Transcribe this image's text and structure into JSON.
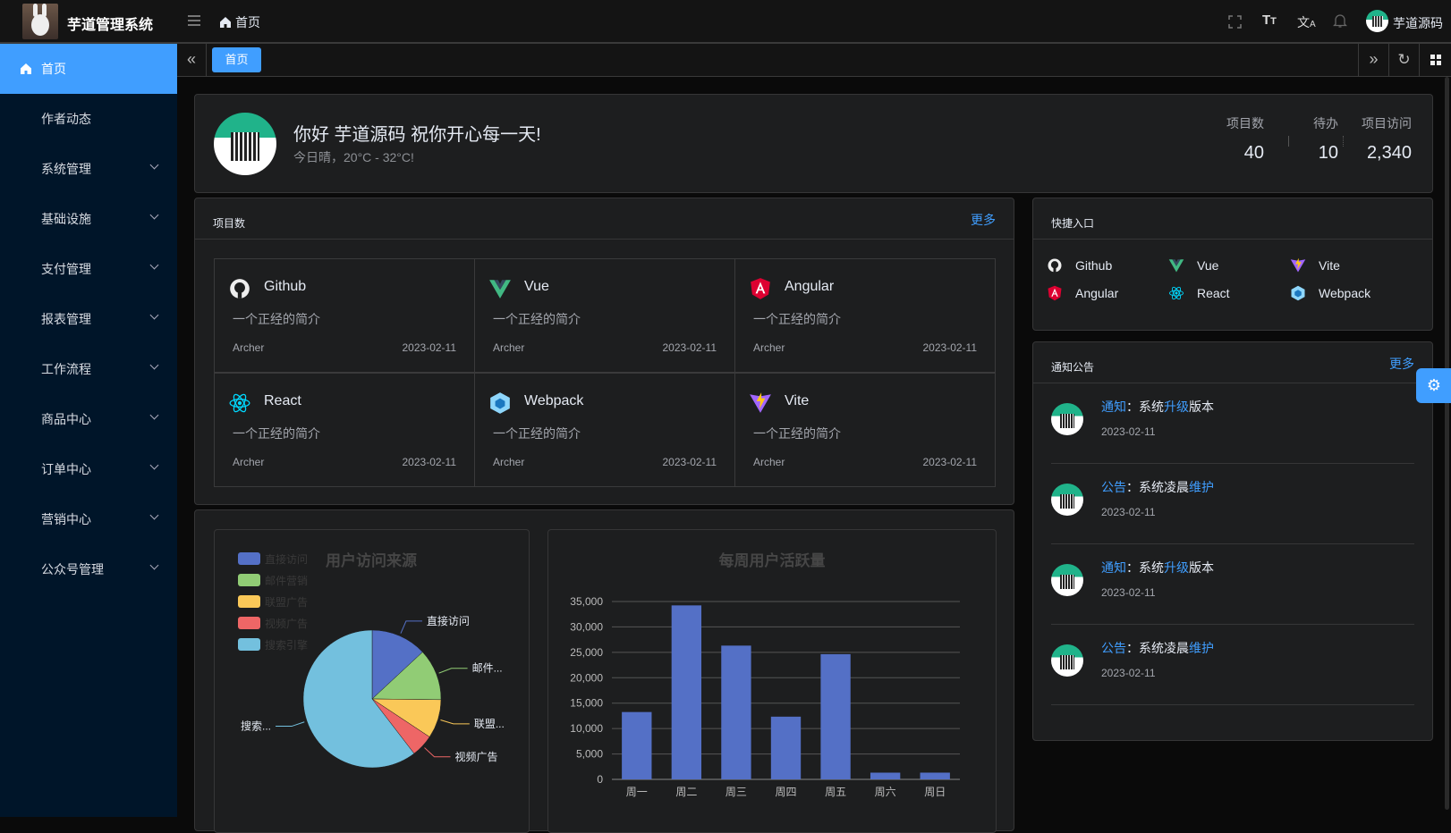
{
  "header": {
    "app_title": "芋道管理系统",
    "breadcrumb": "首页",
    "user_name": "芋道源码"
  },
  "sidebar": {
    "items": [
      {
        "label": "首页",
        "icon": "home-icon",
        "active": true
      },
      {
        "label": "作者动态"
      },
      {
        "label": "系统管理",
        "expandable": true
      },
      {
        "label": "基础设施",
        "expandable": true
      },
      {
        "label": "支付管理",
        "expandable": true
      },
      {
        "label": "报表管理",
        "expandable": true
      },
      {
        "label": "工作流程",
        "expandable": true
      },
      {
        "label": "商品中心",
        "expandable": true
      },
      {
        "label": "订单中心",
        "expandable": true
      },
      {
        "label": "营销中心",
        "expandable": true
      },
      {
        "label": "公众号管理",
        "expandable": true
      }
    ]
  },
  "tabs": [
    {
      "label": "首页",
      "active": true
    }
  ],
  "welcome": {
    "greeting": "你好 芋道源码 祝你开心每一天!",
    "weather": "今日晴，20°C - 32°C!",
    "stats": [
      {
        "label": "项目数",
        "value": "40"
      },
      {
        "label": "待办",
        "value": "10"
      },
      {
        "label": "项目访问",
        "value": "2,340"
      }
    ]
  },
  "projects": {
    "title": "项目数",
    "more": "更多",
    "items": [
      {
        "name": "Github",
        "icon": "github-icon",
        "desc": "一个正经的简介",
        "author": "Archer",
        "date": "2023-02-11"
      },
      {
        "name": "Vue",
        "icon": "vue-icon",
        "desc": "一个正经的简介",
        "author": "Archer",
        "date": "2023-02-11"
      },
      {
        "name": "Angular",
        "icon": "angular-icon",
        "desc": "一个正经的简介",
        "author": "Archer",
        "date": "2023-02-11"
      },
      {
        "name": "React",
        "icon": "react-icon",
        "desc": "一个正经的简介",
        "author": "Archer",
        "date": "2023-02-11"
      },
      {
        "name": "Webpack",
        "icon": "webpack-icon",
        "desc": "一个正经的简介",
        "author": "Archer",
        "date": "2023-02-11"
      },
      {
        "name": "Vite",
        "icon": "vite-icon",
        "desc": "一个正经的简介",
        "author": "Archer",
        "date": "2023-02-11"
      }
    ]
  },
  "quick": {
    "title": "快捷入口",
    "items": [
      {
        "name": "Github",
        "icon": "github-icon"
      },
      {
        "name": "Vue",
        "icon": "vue-icon"
      },
      {
        "name": "Vite",
        "icon": "vite-icon"
      },
      {
        "name": "Angular",
        "icon": "angular-icon"
      },
      {
        "name": "React",
        "icon": "react-icon"
      },
      {
        "name": "Webpack",
        "icon": "webpack-icon"
      }
    ]
  },
  "notices": {
    "title": "通知公告",
    "more": "更多",
    "items": [
      {
        "type": "通知",
        "sep": "：",
        "pre": "系统",
        "hl": "升级",
        "post": "版本",
        "date": "2023-02-11"
      },
      {
        "type": "公告",
        "sep": "：",
        "pre": "系统凌晨",
        "hl": "维护",
        "post": "",
        "date": "2023-02-11"
      },
      {
        "type": "通知",
        "sep": "：",
        "pre": "系统",
        "hl": "升级",
        "post": "版本",
        "date": "2023-02-11"
      },
      {
        "type": "公告",
        "sep": "：",
        "pre": "系统凌晨",
        "hl": "维护",
        "post": "",
        "date": "2023-02-11"
      }
    ]
  },
  "chart_data": [
    {
      "type": "pie",
      "title": "用户访问来源",
      "legend_position": "left",
      "categories": [
        "直接访问",
        "邮件营销",
        "联盟广告",
        "视频广告",
        "搜索引擎"
      ],
      "slice_labels": [
        "直接访问",
        "邮件...",
        "联盟...",
        "视频广告",
        "搜索..."
      ],
      "values": [
        335,
        310,
        234,
        135,
        1548
      ],
      "colors": [
        "#5470c6",
        "#91cc75",
        "#fac858",
        "#ee6666",
        "#73c0de"
      ]
    },
    {
      "type": "bar",
      "title": "每周用户活跃量",
      "categories": [
        "周一",
        "周二",
        "周三",
        "周四",
        "周五",
        "周六",
        "周日"
      ],
      "values": [
        13253,
        34235,
        26321,
        12340,
        24643,
        1322,
        1324
      ],
      "ylim": [
        0,
        35000
      ],
      "yticks": [
        "0",
        "5,000",
        "10,000",
        "15,000",
        "20,000",
        "25,000",
        "30,000",
        "35,000"
      ],
      "grid": true,
      "color": "#5470c6"
    }
  ]
}
